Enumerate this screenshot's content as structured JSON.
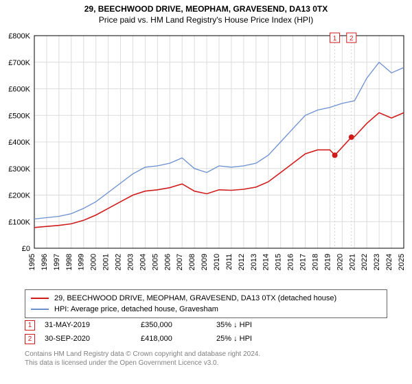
{
  "title_main": "29, BEECHWOOD DRIVE, MEOPHAM, GRAVESEND, DA13 0TX",
  "title_sub": "Price paid vs. HM Land Registry's House Price Index (HPI)",
  "title_fontsize": 13,
  "chart": {
    "type": "line",
    "background_color": "#ffffff",
    "grid_color": "#dcdcdc",
    "axis_color": "#000000",
    "axis_fontsize": 11,
    "xlim": [
      1995,
      2025
    ],
    "ylim": [
      0,
      800000
    ],
    "xticks": [
      1995,
      1996,
      1997,
      1998,
      1999,
      2000,
      2001,
      2002,
      2003,
      2004,
      2005,
      2006,
      2007,
      2008,
      2009,
      2010,
      2011,
      2012,
      2013,
      2014,
      2015,
      2016,
      2017,
      2018,
      2019,
      2020,
      2021,
      2022,
      2023,
      2024,
      2025
    ],
    "yticks": [
      0,
      100000,
      200000,
      300000,
      400000,
      500000,
      600000,
      700000,
      800000
    ],
    "ytick_labels": [
      "£0",
      "£100K",
      "£200K",
      "£300K",
      "£400K",
      "£500K",
      "£600K",
      "£700K",
      "£800K"
    ],
    "series": [
      {
        "name": "hpi",
        "label": "HPI: Average price, detached house, Gravesham",
        "color": "#6a8fd1",
        "line_width": 1.3,
        "x": [
          1995,
          1996,
          1997,
          1998,
          1999,
          2000,
          2001,
          2002,
          2003,
          2004,
          2005,
          2006,
          2007,
          2008,
          2009,
          2010,
          2011,
          2012,
          2013,
          2014,
          2015,
          2016,
          2017,
          2018,
          2019,
          2020,
          2021,
          2022,
          2023,
          2024,
          2025
        ],
        "y": [
          110000,
          115000,
          120000,
          130000,
          150000,
          175000,
          210000,
          245000,
          280000,
          305000,
          310000,
          320000,
          340000,
          300000,
          285000,
          310000,
          305000,
          310000,
          320000,
          350000,
          400000,
          450000,
          500000,
          520000,
          530000,
          545000,
          555000,
          640000,
          700000,
          660000,
          680000
        ]
      },
      {
        "name": "property",
        "label": "29, BEECHWOOD DRIVE, MEOPHAM, GRAVESEND, DA13 0TX (detached house)",
        "color": "#d11b1b",
        "line_width": 1.6,
        "x": [
          1995,
          1996,
          1997,
          1998,
          1999,
          2000,
          2001,
          2002,
          2003,
          2004,
          2005,
          2006,
          2007,
          2008,
          2009,
          2010,
          2011,
          2012,
          2013,
          2014,
          2015,
          2016,
          2017,
          2018,
          2019,
          2019.4,
          2020.75,
          2021,
          2022,
          2023,
          2024,
          2025
        ],
        "y": [
          78000,
          82000,
          86000,
          92000,
          105000,
          125000,
          150000,
          175000,
          200000,
          215000,
          220000,
          228000,
          242000,
          215000,
          205000,
          220000,
          218000,
          222000,
          230000,
          250000,
          285000,
          320000,
          355000,
          370000,
          370000,
          350000,
          418000,
          420000,
          470000,
          510000,
          490000,
          510000
        ]
      }
    ],
    "markers": [
      {
        "n": "1",
        "x": 2019.4,
        "y": 350000,
        "color": "#d11b1b",
        "flag_top": 50000
      },
      {
        "n": "2",
        "x": 2020.75,
        "y": 418000,
        "color": "#d11b1b",
        "flag_top": 50000
      }
    ],
    "marker_box_border": "#d11b1b",
    "marker_box_fontsize": 10,
    "marker_dot_radius": 4,
    "flag_line_color": "#d0d0d0",
    "flag_line_dash": "2,3"
  },
  "legend": [
    {
      "color": "#d11b1b",
      "label": "29, BEECHWOOD DRIVE, MEOPHAM, GRAVESEND, DA13 0TX (detached house)"
    },
    {
      "color": "#6a8fd1",
      "label": "HPI: Average price, detached house, Gravesham"
    }
  ],
  "data_rows": [
    {
      "n": "1",
      "date": "31-MAY-2019",
      "price": "£350,000",
      "delta": "35% ↓ HPI"
    },
    {
      "n": "2",
      "date": "30-SEP-2020",
      "price": "£418,000",
      "delta": "25% ↓ HPI"
    }
  ],
  "footer_line1": "Contains HM Land Registry data © Crown copyright and database right 2024.",
  "footer_line2": "This data is licensed under the Open Government Licence v3.0.",
  "marker_border_color": "#d11b1b"
}
